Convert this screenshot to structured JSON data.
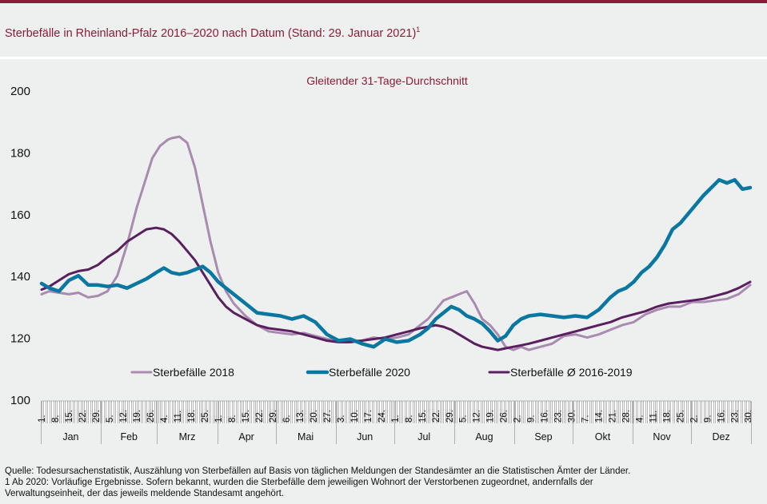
{
  "header": {
    "title": "Sterbefälle  in Rheinland-Pfalz  2016–2020  nach Datum  (Stand:  29.  Januar 2021)",
    "title_sup": "1"
  },
  "colors": {
    "brand": "#8a1c37",
    "series_2018": "#a98bb0",
    "series_2020": "#0a77a0",
    "series_avg": "#5a1f5e",
    "background": "#eef0f0"
  },
  "chart_data": {
    "type": "line",
    "title": "Gleitender 31-Tage-Durchschnitt",
    "xlabel": "",
    "ylabel": "",
    "ylim": [
      100,
      200
    ],
    "yticks": [
      100,
      120,
      140,
      160,
      180,
      200
    ],
    "xlim_days": [
      1,
      366
    ],
    "grid": false,
    "legend_position": "bottom-inside",
    "months": [
      {
        "label": "Jan",
        "start": 1,
        "days": 31,
        "ticks": [
          "1.",
          "8.",
          "15.",
          "22.",
          "29."
        ]
      },
      {
        "label": "Feb",
        "start": 32,
        "days": 29,
        "ticks": [
          "5.",
          "12.",
          "19.",
          "26."
        ]
      },
      {
        "label": "Mrz",
        "start": 61,
        "days": 31,
        "ticks": [
          "4.",
          "11.",
          "18.",
          "25."
        ]
      },
      {
        "label": "Apr",
        "start": 92,
        "days": 30,
        "ticks": [
          "1.",
          "8.",
          "15.",
          "22.",
          "29."
        ]
      },
      {
        "label": "Mai",
        "start": 122,
        "days": 31,
        "ticks": [
          "6.",
          "13.",
          "20.",
          "27."
        ]
      },
      {
        "label": "Jun",
        "start": 153,
        "days": 30,
        "ticks": [
          "3.",
          "10.",
          "17.",
          "24."
        ]
      },
      {
        "label": "Jul",
        "start": 183,
        "days": 31,
        "ticks": [
          "1.",
          "8.",
          "15.",
          "22.",
          "29."
        ]
      },
      {
        "label": "Aug",
        "start": 214,
        "days": 31,
        "ticks": [
          "5.",
          "12.",
          "19.",
          "26."
        ]
      },
      {
        "label": "Sep",
        "start": 245,
        "days": 30,
        "ticks": [
          "2.",
          "9.",
          "16.",
          "23.",
          "30."
        ]
      },
      {
        "label": "Okt",
        "start": 275,
        "days": 31,
        "ticks": [
          "7.",
          "14.",
          "21.",
          "28."
        ]
      },
      {
        "label": "Nov",
        "start": 306,
        "days": 30,
        "ticks": [
          "4.",
          "11.",
          "18.",
          "25."
        ]
      },
      {
        "label": "Dez",
        "start": 336,
        "days": 31,
        "ticks": [
          "2.",
          "9.",
          "16.",
          "23.",
          "30."
        ]
      }
    ],
    "series": [
      {
        "name": "Sterbefälle 2018",
        "key": "s2018",
        "x": [
          1,
          5,
          10,
          15,
          20,
          25,
          30,
          35,
          40,
          45,
          50,
          55,
          58,
          62,
          66,
          68,
          72,
          76,
          80,
          84,
          88,
          92,
          96,
          100,
          106,
          112,
          118,
          124,
          130,
          136,
          142,
          148,
          154,
          160,
          166,
          172,
          178,
          184,
          190,
          196,
          200,
          204,
          208,
          212,
          216,
          220,
          224,
          228,
          232,
          236,
          240,
          244,
          248,
          252,
          258,
          264,
          270,
          276,
          282,
          288,
          294,
          300,
          306,
          312,
          318,
          324,
          330,
          336,
          342,
          348,
          354,
          360,
          366
        ],
        "values": [
          134,
          135,
          134.5,
          134,
          134.5,
          133,
          133.5,
          135,
          140,
          150,
          162,
          172,
          178,
          182,
          184,
          184.5,
          185,
          183,
          175,
          163,
          151,
          141,
          135,
          131,
          127,
          124,
          122,
          121.5,
          121,
          121.5,
          120.5,
          119.5,
          119,
          119,
          119,
          120,
          119.5,
          120,
          121,
          124,
          126,
          129,
          132,
          133,
          134,
          135,
          131,
          126,
          124,
          121,
          117,
          116,
          117,
          116,
          117,
          118,
          120.5,
          121,
          120,
          121,
          122.5,
          124,
          125,
          127.5,
          129,
          130,
          130,
          131.5,
          131.5,
          132,
          132.5,
          134,
          137
        ]
      },
      {
        "name": "Sterbefälle 2020",
        "key": "s2020",
        "x": [
          1,
          5,
          10,
          15,
          20,
          25,
          30,
          35,
          40,
          45,
          50,
          55,
          60,
          64,
          68,
          72,
          76,
          80,
          84,
          88,
          92,
          96,
          100,
          106,
          112,
          118,
          124,
          130,
          136,
          142,
          148,
          154,
          160,
          166,
          172,
          178,
          184,
          190,
          196,
          200,
          204,
          208,
          212,
          216,
          220,
          224,
          228,
          232,
          236,
          240,
          244,
          248,
          252,
          258,
          264,
          270,
          276,
          282,
          288,
          294,
          298,
          302,
          306,
          310,
          314,
          318,
          322,
          326,
          330,
          334,
          338,
          342,
          346,
          350,
          354,
          358,
          362,
          366
        ],
        "values": [
          137.5,
          136,
          135,
          138.5,
          140,
          137,
          137,
          136.5,
          137,
          136,
          137.5,
          139,
          141,
          142.5,
          141,
          140.5,
          141,
          142,
          143,
          141,
          138,
          136,
          134,
          131,
          128,
          127.5,
          127,
          126,
          127,
          125,
          121,
          119,
          119.5,
          118,
          117,
          119.5,
          118.5,
          119,
          121,
          123,
          126,
          128,
          130,
          129,
          127,
          126,
          124.5,
          122,
          119,
          120.5,
          124,
          126,
          127,
          127.5,
          127,
          126.5,
          127,
          126.5,
          129,
          133,
          135,
          136,
          138,
          141,
          143,
          146,
          150,
          155,
          157,
          160,
          163,
          166,
          168.5,
          171,
          170,
          171,
          168,
          168.5
        ]
      },
      {
        "name": "Sterbefälle Ø 2016-2019",
        "key": "savg",
        "x": [
          1,
          5,
          10,
          15,
          20,
          25,
          30,
          35,
          40,
          45,
          50,
          55,
          60,
          64,
          68,
          72,
          76,
          80,
          84,
          88,
          92,
          96,
          100,
          106,
          112,
          118,
          124,
          130,
          136,
          142,
          148,
          154,
          160,
          166,
          172,
          178,
          184,
          190,
          196,
          200,
          204,
          208,
          212,
          216,
          220,
          224,
          228,
          232,
          236,
          240,
          244,
          248,
          252,
          258,
          264,
          270,
          276,
          282,
          288,
          294,
          300,
          306,
          312,
          318,
          324,
          330,
          336,
          342,
          348,
          354,
          360,
          366
        ],
        "values": [
          135.5,
          136.5,
          138.5,
          140.5,
          141.5,
          142,
          143.5,
          146,
          148,
          151,
          153,
          155,
          155.5,
          155,
          153.5,
          151,
          148,
          145,
          141,
          137,
          133,
          130,
          128,
          126,
          124,
          123,
          122.5,
          122,
          121,
          120,
          119,
          118.5,
          118.5,
          119,
          119.5,
          120,
          121,
          122,
          123,
          123.5,
          124,
          123.5,
          122.5,
          121,
          119.5,
          118,
          117,
          116.5,
          116,
          116.5,
          117,
          117.5,
          118,
          119,
          120,
          121,
          122,
          123,
          124,
          125,
          126.5,
          127.5,
          128.5,
          130,
          131,
          131.5,
          132,
          132.5,
          133.5,
          134.5,
          136,
          138
        ]
      }
    ]
  },
  "legend": [
    {
      "label": "Sterbefälle 2018",
      "key": "s2018"
    },
    {
      "label": "Sterbefälle 2020",
      "key": "s2020"
    },
    {
      "label": "Sterbefälle Ø 2016-2019",
      "key": "savg"
    }
  ],
  "footer": {
    "source": "Quelle: Todesursachenstatistik, Auszählung von Sterbefällen  auf Basis von täglichen Meldungen  der Standesämter an die Statistischen Ämter der Länder.",
    "note_line1": "1 Ab 2020: Vorläufige  Ergebnisse. Sofern bekannt, wurden die Sterbefälle dem jeweiligen Wohnort der Verstorbenen  zugeordnet, andernfalls  der",
    "note_line2": "Verwaltungseinheit,  der das jeweils  meldende  Standesamt angehört."
  }
}
